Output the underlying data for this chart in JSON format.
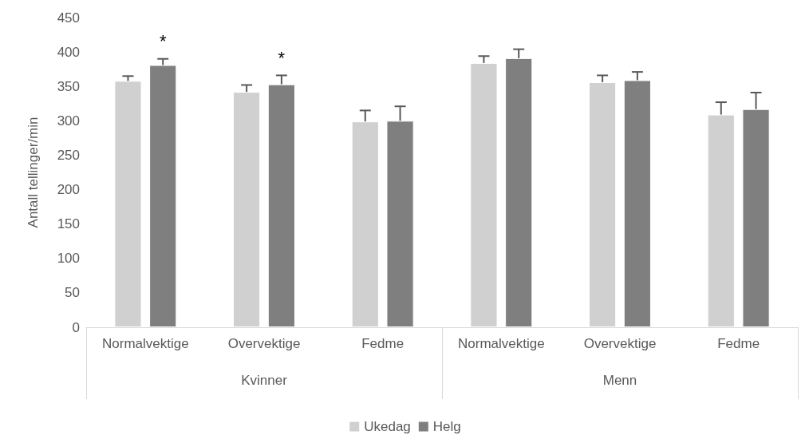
{
  "chart_data": {
    "type": "bar",
    "ylabel": "Antall tellinger/min",
    "categories": [
      "Normalvektige",
      "Overvektige",
      "Fedme",
      "Normalvektige",
      "Overvektige",
      "Fedme"
    ],
    "series": [
      {
        "name": "Ukedag",
        "color": "#d0d0d0",
        "values": [
          358,
          342,
          299,
          384,
          356,
          309
        ],
        "errors": [
          7,
          10,
          16,
          10,
          10,
          18
        ]
      },
      {
        "name": "Helg",
        "color": "#7f7f7f",
        "values": [
          381,
          353,
          300,
          391,
          359,
          317
        ],
        "errors": [
          9,
          13,
          21,
          13,
          12,
          24
        ]
      }
    ],
    "ylim": [
      0,
      450
    ],
    "yticks": [
      0,
      50,
      100,
      150,
      200,
      250,
      300,
      350,
      400,
      450
    ],
    "annotations": [
      "*",
      "*",
      "Kvinner",
      "Menn"
    ],
    "grid": false,
    "legend": "bottom"
  }
}
